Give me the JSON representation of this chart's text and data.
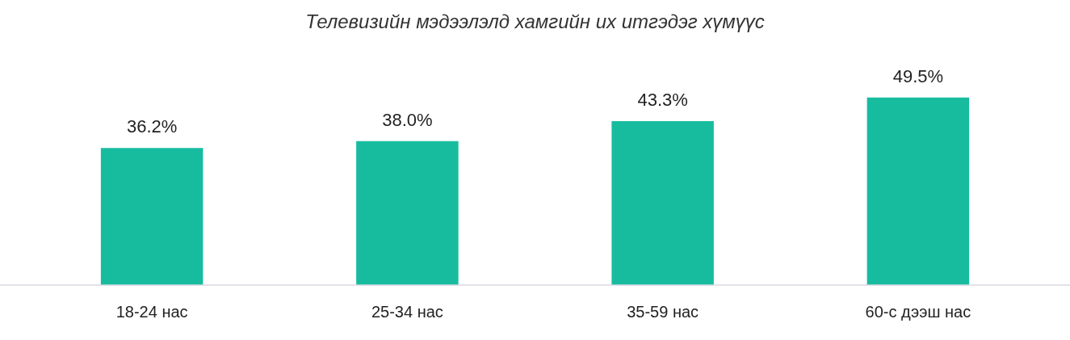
{
  "chart_data": {
    "type": "bar",
    "title": "Телевизийн мэдээлэлд хамгийн их итгэдэг хүмүүс",
    "categories": [
      "18-24 нас",
      "25-34 нас",
      "35-59 нас",
      "60-с дээш нас"
    ],
    "values": [
      36.2,
      38.0,
      43.3,
      49.5
    ],
    "value_labels": [
      "36.2%",
      "38.0%",
      "43.3%",
      "49.5%"
    ],
    "color": "#17bc9f",
    "grid": false,
    "legend": false
  }
}
